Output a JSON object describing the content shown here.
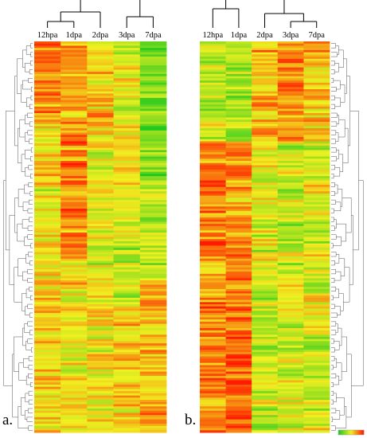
{
  "panels": {
    "a_label": "a.",
    "b_label": "b."
  },
  "chart_data": [
    {
      "type": "heatmap",
      "title": "",
      "columns": [
        "12hpa",
        "1dpa",
        "2dpa",
        "3dpa",
        "7dpa"
      ],
      "row_dendrogram": "left",
      "column_dendrogram": "top",
      "column_cluster_structure": [
        [
          [
            "12hpa",
            "1dpa"
          ],
          "2dpa"
        ],
        [
          "3dpa",
          "7dpa"
        ]
      ],
      "approx_row_count": 180,
      "colorscale": [
        "#1ec81e",
        "#f0f020",
        "#ff1a00"
      ],
      "seed": 7
    },
    {
      "type": "heatmap",
      "title": "",
      "columns": [
        "12hpa",
        "1dpa",
        "2dpa",
        "3dpa",
        "7dpa"
      ],
      "row_dendrogram": "right",
      "column_dendrogram": "top",
      "column_cluster_structure": [
        [
          "12hpa",
          "1dpa"
        ],
        [
          "2dpa",
          [
            "3dpa",
            "7dpa"
          ]
        ]
      ],
      "approx_row_count": 180,
      "colorscale": [
        "#1ec81e",
        "#f0f020",
        "#ff1a00"
      ],
      "colorbar": true,
      "seed": 23
    }
  ]
}
